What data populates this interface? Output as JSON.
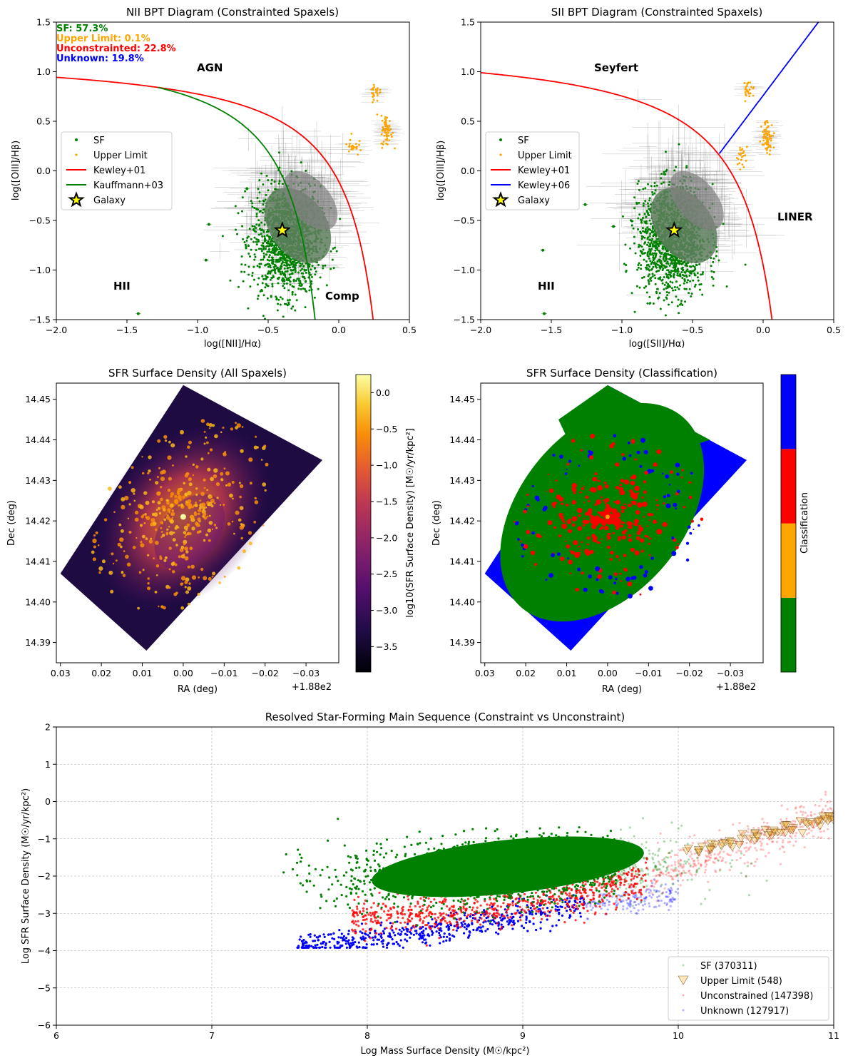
{
  "chart_data": [
    {
      "type": "scatter",
      "title": "NII BPT Diagram (Constrainted Spaxels)",
      "xlabel": "log([NII]/Hα)",
      "ylabel": "log([OIII]/Hβ)",
      "xlim": [
        -2.0,
        0.5
      ],
      "ylim": [
        -1.5,
        1.5
      ],
      "xticks": [
        -2.0,
        -1.5,
        -1.0,
        -0.5,
        0.0,
        0.5
      ],
      "yticks": [
        -1.5,
        -1.0,
        -0.5,
        0.0,
        0.5,
        1.0,
        1.5
      ],
      "xtick_labels": [
        "−2.0",
        "−1.5",
        "−1.0",
        "−0.5",
        "0.0",
        "0.5"
      ],
      "ytick_labels": [
        "−1.5",
        "−1.0",
        "−0.5",
        "0.0",
        "0.5",
        "1.0",
        "1.5"
      ],
      "stats": [
        {
          "text": "SF: 57.3%",
          "color": "#008000"
        },
        {
          "text": "Upper Limit: 0.1%",
          "color": "#ffa500"
        },
        {
          "text": "Unconstrainted: 22.8%",
          "color": "#ff0000"
        },
        {
          "text": "Unknown: 19.8%",
          "color": "#0000ff"
        }
      ],
      "region_labels": {
        "agn": "AGN",
        "hii": "HII",
        "comp": "Comp"
      },
      "legend": {
        "location": "center-left",
        "entries": [
          {
            "label": "SF",
            "color": "#008000"
          },
          {
            "label": "Upper Limit",
            "color": "#ffa500"
          },
          {
            "label": "Kewley+01",
            "color": "#ff0000"
          },
          {
            "label": "Kauffmann+03",
            "color": "#008000"
          },
          {
            "label": "Galaxy",
            "color": "#ffff00"
          }
        ]
      },
      "galaxy": {
        "x": -0.4,
        "y": -0.6
      },
      "sf_cloud_center": {
        "x": -0.35,
        "y": -0.6
      },
      "upper_limit_clusters": [
        {
          "x": 0.34,
          "y": 0.4
        },
        {
          "x": 0.26,
          "y": 0.8
        },
        {
          "x": 0.1,
          "y": 0.25
        }
      ],
      "outliers": [
        {
          "x": -1.42,
          "y": -1.44
        },
        {
          "x": -0.92,
          "y": -0.54
        },
        {
          "x": -0.65,
          "y": -0.18
        },
        {
          "x": -0.94,
          "y": -0.9
        }
      ],
      "colors": {
        "sf": "#008000",
        "upper": "#ffa500",
        "err": "#808080",
        "cloud": "#5f7f5f"
      }
    },
    {
      "type": "scatter",
      "title": "SII BPT Diagram (Constrainted Spaxels)",
      "xlabel": "log([SII]/Hα)",
      "ylabel": "log([OIII]/Hβ)",
      "xlim": [
        -2.0,
        0.5
      ],
      "ylim": [
        -1.5,
        1.5
      ],
      "xticks": [
        -2.0,
        -1.5,
        -1.0,
        -0.5,
        0.0,
        0.5
      ],
      "yticks": [
        -1.5,
        -1.0,
        -0.5,
        0.0,
        0.5,
        1.0,
        1.5
      ],
      "xtick_labels": [
        "−2.0",
        "−1.5",
        "−1.0",
        "−0.5",
        "0.0",
        "0.5"
      ],
      "ytick_labels": [
        "−1.5",
        "−1.0",
        "−0.5",
        "0.0",
        "0.5",
        "1.0",
        "1.5"
      ],
      "region_labels": {
        "seyfert": "Seyfert",
        "hii": "HII",
        "liner": "LINER"
      },
      "legend": {
        "location": "center-left",
        "entries": [
          {
            "label": "SF",
            "color": "#008000"
          },
          {
            "label": "Upper Limit",
            "color": "#ffa500"
          },
          {
            "label": "Kewley+01",
            "color": "#ff0000"
          },
          {
            "label": "Kewley+06",
            "color": "#0000ff"
          },
          {
            "label": "Galaxy",
            "color": "#ffff00"
          }
        ]
      },
      "galaxy": {
        "x": -0.63,
        "y": -0.6
      },
      "sf_cloud_center": {
        "x": -0.62,
        "y": -0.6
      },
      "upper_limit_clusters": [
        {
          "x": 0.03,
          "y": 0.35
        },
        {
          "x": -0.1,
          "y": 0.82
        },
        {
          "x": -0.15,
          "y": 0.15
        }
      ],
      "outliers": [
        {
          "x": -1.55,
          "y": -1.44
        },
        {
          "x": -1.56,
          "y": -0.8
        },
        {
          "x": -1.26,
          "y": -0.34
        },
        {
          "x": -1.06,
          "y": -0.56
        }
      ],
      "colors": {
        "sf": "#008000",
        "upper": "#ffa500",
        "err": "#808080",
        "cloud": "#5f7f5f"
      }
    },
    {
      "type": "heatmap",
      "title": "SFR Surface Density (All Spaxels)",
      "xlabel": "RA (deg)",
      "ylabel": "Dec (deg)",
      "xlim": [
        188.031,
        187.962
      ],
      "ylim": [
        14.385,
        14.454
      ],
      "xticks": [
        188.03,
        188.02,
        188.01,
        188.0,
        187.99,
        187.98,
        187.97
      ],
      "xtick_labels": [
        "0.03",
        "0.02",
        "0.01",
        "0.00",
        "−0.01",
        "−0.02",
        "−0.03"
      ],
      "yticks": [
        14.39,
        14.4,
        14.41,
        14.42,
        14.43,
        14.44,
        14.45
      ],
      "ytick_labels": [
        "14.39",
        "14.40",
        "14.41",
        "14.42",
        "14.43",
        "14.44",
        "14.45"
      ],
      "offset_text": "+1.88e2",
      "footprint": [
        [
          188.0,
          14.4535
        ],
        [
          187.966,
          14.435
        ],
        [
          188.009,
          14.388
        ],
        [
          188.03,
          14.407
        ]
      ],
      "colorbar": {
        "label": "log10(SFR Surface Density) [M☉/yr/kpc²]",
        "range": [
          -3.85,
          0.25
        ],
        "ticks": [
          0.0,
          -0.5,
          -1.0,
          -1.5,
          -2.0,
          -2.5,
          -3.0,
          -3.5
        ],
        "tick_labels": [
          "0.0",
          "−0.5",
          "−1.0",
          "−1.5",
          "−2.0",
          "−2.5",
          "−3.0",
          "−3.5"
        ],
        "colormap": "inferno"
      }
    },
    {
      "type": "heatmap",
      "title": "SFR Surface Density (Classification)",
      "xlabel": "RA (deg)",
      "ylabel": "Dec (deg)",
      "xlim": [
        188.031,
        187.962
      ],
      "ylim": [
        14.385,
        14.454
      ],
      "xticks": [
        188.03,
        188.02,
        188.01,
        188.0,
        187.99,
        187.98,
        187.97
      ],
      "xtick_labels": [
        "0.03",
        "0.02",
        "0.01",
        "0.00",
        "−0.01",
        "−0.02",
        "−0.03"
      ],
      "yticks": [
        14.39,
        14.4,
        14.41,
        14.42,
        14.43,
        14.44,
        14.45
      ],
      "ytick_labels": [
        "14.39",
        "14.40",
        "14.41",
        "14.42",
        "14.43",
        "14.44",
        "14.45"
      ],
      "offset_text": "+1.88e2",
      "footprint": [
        [
          188.0,
          14.4535
        ],
        [
          187.966,
          14.435
        ],
        [
          188.009,
          14.388
        ],
        [
          188.03,
          14.407
        ]
      ],
      "colorbar": {
        "label": "Classification",
        "categories": [
          "SF",
          "Upper Limit",
          "Unconstrained",
          "Unknown"
        ],
        "colors": [
          "#008000",
          "#ffa500",
          "#ff0000",
          "#0000ff"
        ]
      }
    },
    {
      "type": "scatter",
      "title": "Resolved Star-Forming Main Sequence (Constraint vs Unconstraint)",
      "xlabel": "Log Mass Surface Density (M☉/kpc²)",
      "ylabel": "Log SFR Surface Density (M☉/yr/kpc²)",
      "xlim": [
        6,
        11
      ],
      "ylim": [
        -6,
        2
      ],
      "xticks": [
        6,
        7,
        8,
        9,
        10,
        11
      ],
      "yticks": [
        -6,
        -5,
        -4,
        -3,
        -2,
        -1,
        0,
        1,
        2
      ],
      "xtick_labels": [
        "6",
        "7",
        "8",
        "9",
        "10",
        "11"
      ],
      "ytick_labels": [
        "−6",
        "−5",
        "−4",
        "−3",
        "−2",
        "−1",
        "0",
        "1",
        "2"
      ],
      "grid": true,
      "legend": {
        "location": "lower-right",
        "entries": [
          {
            "label": "SF (370311)",
            "color": "#008000",
            "marker": "dot"
          },
          {
            "label": "Upper Limit (548)",
            "color": "#ffa500",
            "marker": "triangle-down"
          },
          {
            "label": "Unconstrained (147398)",
            "color": "#ff0000",
            "marker": "dot"
          },
          {
            "label": "Unknown (127917)",
            "color": "#0000ff",
            "marker": "dot"
          }
        ]
      },
      "series": [
        {
          "name": "SF",
          "count": 370311,
          "center": [
            8.9,
            -1.6
          ],
          "spread": [
            0.55,
            0.45
          ]
        },
        {
          "name": "Upper Limit",
          "count": 548,
          "trend": [
            [
              10.1,
              -1.3
            ],
            [
              10.4,
              -1.0
            ],
            [
              10.8,
              -0.65
            ],
            [
              11.0,
              -0.4
            ]
          ]
        },
        {
          "name": "Unconstrained",
          "count": 147398,
          "trend": [
            [
              8.0,
              -3.1
            ],
            [
              9.0,
              -2.8
            ],
            [
              9.6,
              -2.3
            ],
            [
              10.2,
              -1.5
            ],
            [
              11.0,
              -0.3
            ]
          ]
        },
        {
          "name": "Unknown",
          "count": 127917,
          "trend": [
            [
              7.6,
              -3.9
            ],
            [
              8.4,
              -3.5
            ],
            [
              9.5,
              -2.7
            ],
            [
              10.0,
              -2.5
            ]
          ]
        }
      ]
    }
  ]
}
